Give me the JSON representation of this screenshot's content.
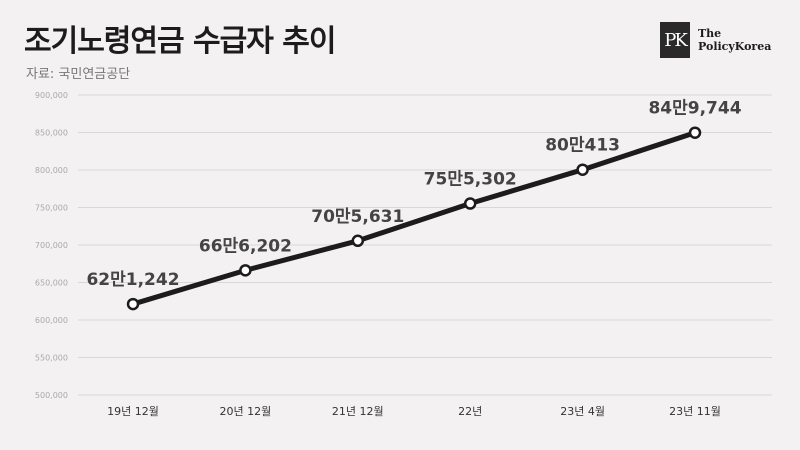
{
  "header": {
    "title": "조기노령연금 수급자 추이",
    "source": "자료: 국민연금공단"
  },
  "logo": {
    "mark": "PK",
    "line1": "The",
    "line2": "PolicyKorea"
  },
  "colors": {
    "background": "#f3f1f2",
    "line": "#1c1c1c",
    "grid": "#d9d7d8",
    "label": "#444444",
    "tick": "#aaaaaa"
  },
  "chart_data": {
    "type": "line",
    "categories": [
      "19년 12월",
      "20년 12월",
      "21년 12월",
      "22년",
      "23년 4월",
      "23년 11월"
    ],
    "values": [
      621242,
      666202,
      705631,
      755302,
      800413,
      849744
    ],
    "data_labels": [
      "62만1,242",
      "66만6,202",
      "70만5,631",
      "75만5,302",
      "80만413",
      "84만9,744"
    ],
    "yticks": [
      500000,
      550000,
      600000,
      650000,
      700000,
      750000,
      800000,
      850000,
      900000
    ],
    "ytick_labels": [
      "500,000",
      "550,000",
      "600,000",
      "650,000",
      "700,000",
      "750,000",
      "800,000",
      "850,000",
      "900,000"
    ],
    "ylim": [
      500000,
      900000
    ],
    "grid": true
  }
}
